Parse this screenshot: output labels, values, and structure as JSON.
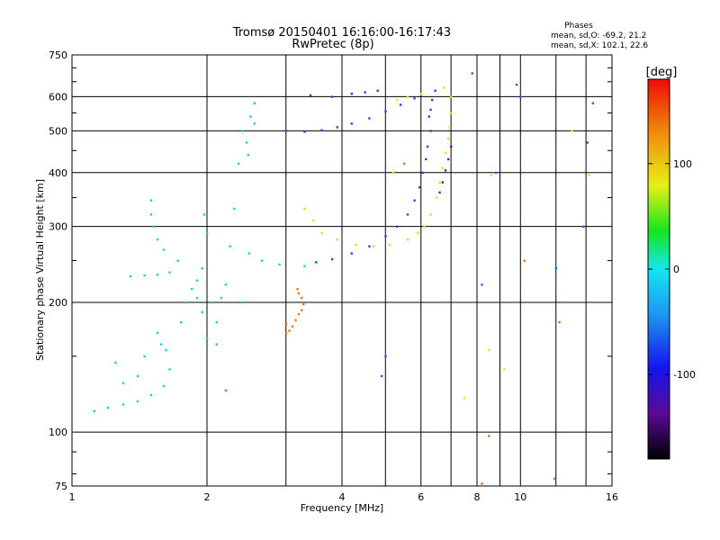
{
  "chart_data": {
    "type": "scatter",
    "title": "Tromsø 20150401 16:16:00-16:17:43",
    "subtitle": "RwPretec (8p)",
    "phases": {
      "heading": "Phases",
      "line_o": "mean, sd,O: -69.2, 21.2",
      "line_x": "mean, sd,X: 102.1, 22.6"
    },
    "xlabel": "Frequency [MHz]",
    "ylabel": "Stationary phase Virtual Height [km]",
    "x_scale": "log",
    "y_scale": "log",
    "xlim": [
      1,
      16
    ],
    "ylim": [
      75,
      750
    ],
    "x_ticks": [
      1,
      2,
      4,
      6,
      8,
      10,
      16
    ],
    "x_tick_labels": [
      "1",
      "2",
      "4",
      "6",
      "8",
      "10",
      "16"
    ],
    "x_minor_ticks": [
      3,
      5,
      7,
      9,
      12,
      14
    ],
    "y_ticks": [
      75,
      100,
      200,
      300,
      400,
      500,
      600,
      750
    ],
    "y_tick_labels": [
      "75",
      "100",
      "200",
      "300",
      "400",
      "500",
      "600",
      "750"
    ],
    "y_minor_ticks": [
      80,
      90,
      150,
      250,
      350,
      450,
      550,
      650,
      700
    ],
    "grid": true,
    "colorbar": {
      "label": "[deg]",
      "range": [
        -180,
        180
      ],
      "ticks": [
        100,
        0,
        -100
      ],
      "tick_labels": [
        "100",
        "0",
        "-100"
      ]
    },
    "series": [
      {
        "phase": -55,
        "color": "#1ec8e6",
        "points": [
          [
            1.12,
            112
          ],
          [
            1.2,
            114
          ],
          [
            1.3,
            116
          ],
          [
            1.4,
            118
          ],
          [
            1.5,
            122
          ],
          [
            1.6,
            128
          ],
          [
            1.65,
            140
          ],
          [
            1.62,
            155
          ],
          [
            1.58,
            160
          ],
          [
            1.3,
            130
          ],
          [
            1.25,
            145
          ],
          [
            1.4,
            135
          ],
          [
            1.55,
            170
          ],
          [
            1.45,
            150
          ],
          [
            1.35,
            230
          ],
          [
            1.45,
            231
          ],
          [
            1.55,
            232
          ],
          [
            1.65,
            235
          ],
          [
            1.72,
            250
          ],
          [
            1.6,
            265
          ],
          [
            1.55,
            280
          ],
          [
            1.52,
            300
          ],
          [
            1.5,
            320
          ],
          [
            1.5,
            345
          ],
          [
            1.75,
            180
          ],
          [
            1.8,
            200
          ],
          [
            1.85,
            215
          ],
          [
            1.9,
            225
          ],
          [
            1.95,
            240
          ],
          [
            2.0,
            290
          ],
          [
            1.97,
            320
          ],
          [
            2.05,
            200
          ],
          [
            2.1,
            180
          ],
          [
            2.2,
            220
          ],
          [
            2.25,
            270
          ],
          [
            2.3,
            330
          ],
          [
            2.35,
            420
          ],
          [
            2.4,
            500
          ],
          [
            2.45,
            470
          ],
          [
            2.47,
            440
          ],
          [
            2.55,
            580
          ],
          [
            2.55,
            520
          ],
          [
            2.5,
            540
          ],
          [
            2.48,
            260
          ],
          [
            2.65,
            250
          ],
          [
            2.9,
            245
          ],
          [
            3.3,
            243
          ],
          [
            2.1,
            160
          ],
          [
            2.0,
            165
          ],
          [
            1.95,
            190
          ],
          [
            1.9,
            205
          ],
          [
            2.15,
            205
          ],
          [
            2.4,
            200
          ]
        ]
      },
      {
        "phase": -105,
        "color": "#1e46e6",
        "points": [
          [
            3.0,
            500
          ],
          [
            3.3,
            498
          ],
          [
            3.6,
            502
          ],
          [
            3.9,
            510
          ],
          [
            4.2,
            520
          ],
          [
            4.6,
            535
          ],
          [
            5.0,
            555
          ],
          [
            5.4,
            575
          ],
          [
            5.8,
            595
          ],
          [
            3.5,
            248
          ],
          [
            3.8,
            252
          ],
          [
            4.2,
            260
          ],
          [
            4.6,
            270
          ],
          [
            5.0,
            285
          ],
          [
            5.3,
            300
          ],
          [
            5.6,
            320
          ],
          [
            5.8,
            345
          ],
          [
            5.95,
            370
          ],
          [
            6.05,
            400
          ],
          [
            6.15,
            430
          ],
          [
            6.2,
            460
          ],
          [
            6.3,
            500
          ],
          [
            6.25,
            540
          ],
          [
            6.3,
            560
          ],
          [
            6.35,
            590
          ],
          [
            6.45,
            620
          ],
          [
            3.4,
            605
          ],
          [
            3.8,
            600
          ],
          [
            4.2,
            610
          ],
          [
            4.5,
            615
          ],
          [
            4.8,
            620
          ]
        ]
      },
      {
        "phase": 100,
        "color": "#e6dc14",
        "points": [
          [
            3.3,
            330
          ],
          [
            3.45,
            310
          ],
          [
            3.6,
            290
          ],
          [
            3.9,
            280
          ],
          [
            4.3,
            272
          ],
          [
            4.7,
            270
          ],
          [
            5.1,
            272
          ],
          [
            5.6,
            280
          ],
          [
            5.9,
            290
          ],
          [
            6.1,
            300
          ],
          [
            6.3,
            320
          ],
          [
            6.5,
            350
          ],
          [
            6.6,
            380
          ],
          [
            6.7,
            410
          ],
          [
            6.8,
            445
          ],
          [
            6.9,
            480
          ],
          [
            6.95,
            510
          ],
          [
            7.0,
            550
          ],
          [
            7.0,
            600
          ],
          [
            6.75,
            630
          ],
          [
            6.0,
            610
          ],
          [
            5.6,
            600
          ],
          [
            5.3,
            590
          ]
        ]
      },
      {
        "phase": 140,
        "color": "#f07814",
        "points": [
          [
            3.0,
            170
          ],
          [
            3.05,
            172
          ],
          [
            3.1,
            176
          ],
          [
            3.15,
            182
          ],
          [
            3.2,
            188
          ],
          [
            3.25,
            192
          ],
          [
            3.28,
            198
          ],
          [
            3.25,
            205
          ],
          [
            3.2,
            210
          ],
          [
            3.18,
            215
          ]
        ]
      },
      {
        "phase": -150,
        "color": "#780aa0",
        "points": [
          [
            6.6,
            360
          ],
          [
            6.7,
            380
          ],
          [
            6.8,
            405
          ],
          [
            6.9,
            430
          ],
          [
            7.0,
            460
          ]
        ]
      },
      {
        "phase": -80,
        "color": "#1e64dc",
        "points": [
          [
            8.2,
            220
          ],
          [
            8.8,
            400
          ],
          [
            9.8,
            640
          ],
          [
            10.0,
            600
          ],
          [
            12.0,
            240
          ],
          [
            13.8,
            300
          ],
          [
            14.1,
            470
          ],
          [
            14.5,
            580
          ],
          [
            5.0,
            150
          ],
          [
            7.8,
            680
          ],
          [
            4.9,
            135
          ]
        ]
      },
      {
        "phase": 95,
        "color": "#e6e61e",
        "points": [
          [
            8.5,
            155
          ],
          [
            9.2,
            140
          ],
          [
            7.5,
            120
          ],
          [
            13.0,
            500
          ],
          [
            14.2,
            395
          ],
          [
            5.2,
            400
          ],
          [
            8.6,
            395
          ]
        ]
      },
      {
        "phase": 145,
        "color": "#f06414",
        "points": [
          [
            2.2,
            125
          ],
          [
            3.0,
            178
          ],
          [
            8.5,
            98
          ],
          [
            10.2,
            250
          ],
          [
            12.2,
            180
          ],
          [
            8.2,
            76
          ],
          [
            11.9,
            78
          ],
          [
            5.5,
            420
          ]
        ]
      }
    ]
  }
}
